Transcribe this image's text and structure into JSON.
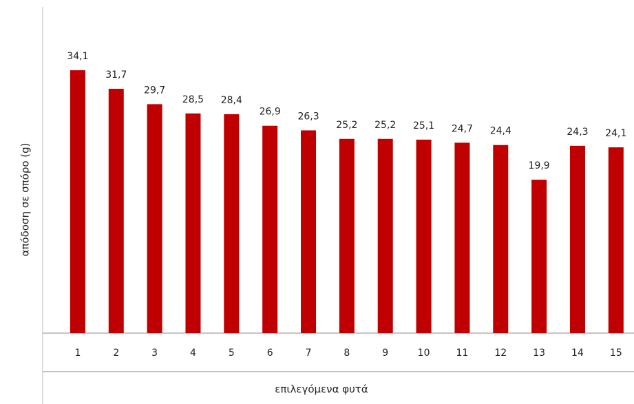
{
  "chart_data": {
    "type": "bar",
    "ylabel": "απόδοση  σε σπόρο (g)",
    "xlabel": "επιλεγόμενα φυτά",
    "categories": [
      "1",
      "2",
      "3",
      "4",
      "5",
      "6",
      "7",
      "8",
      "9",
      "10",
      "11",
      "12",
      "13",
      "14",
      "15"
    ],
    "values": [
      34.1,
      31.7,
      29.7,
      28.5,
      28.4,
      26.9,
      26.3,
      25.2,
      25.2,
      25.1,
      24.7,
      24.4,
      19.9,
      24.3,
      24.1
    ],
    "value_labels": [
      "34,1",
      "31,7",
      "29,7",
      "28,5",
      "28,4",
      "26,9",
      "26,3",
      "25,2",
      "25,2",
      "25,1",
      "24,7",
      "24,4",
      "19,9",
      "24,3",
      "24,1"
    ],
    "color": "#c00000",
    "ylim": [
      0,
      40
    ]
  }
}
